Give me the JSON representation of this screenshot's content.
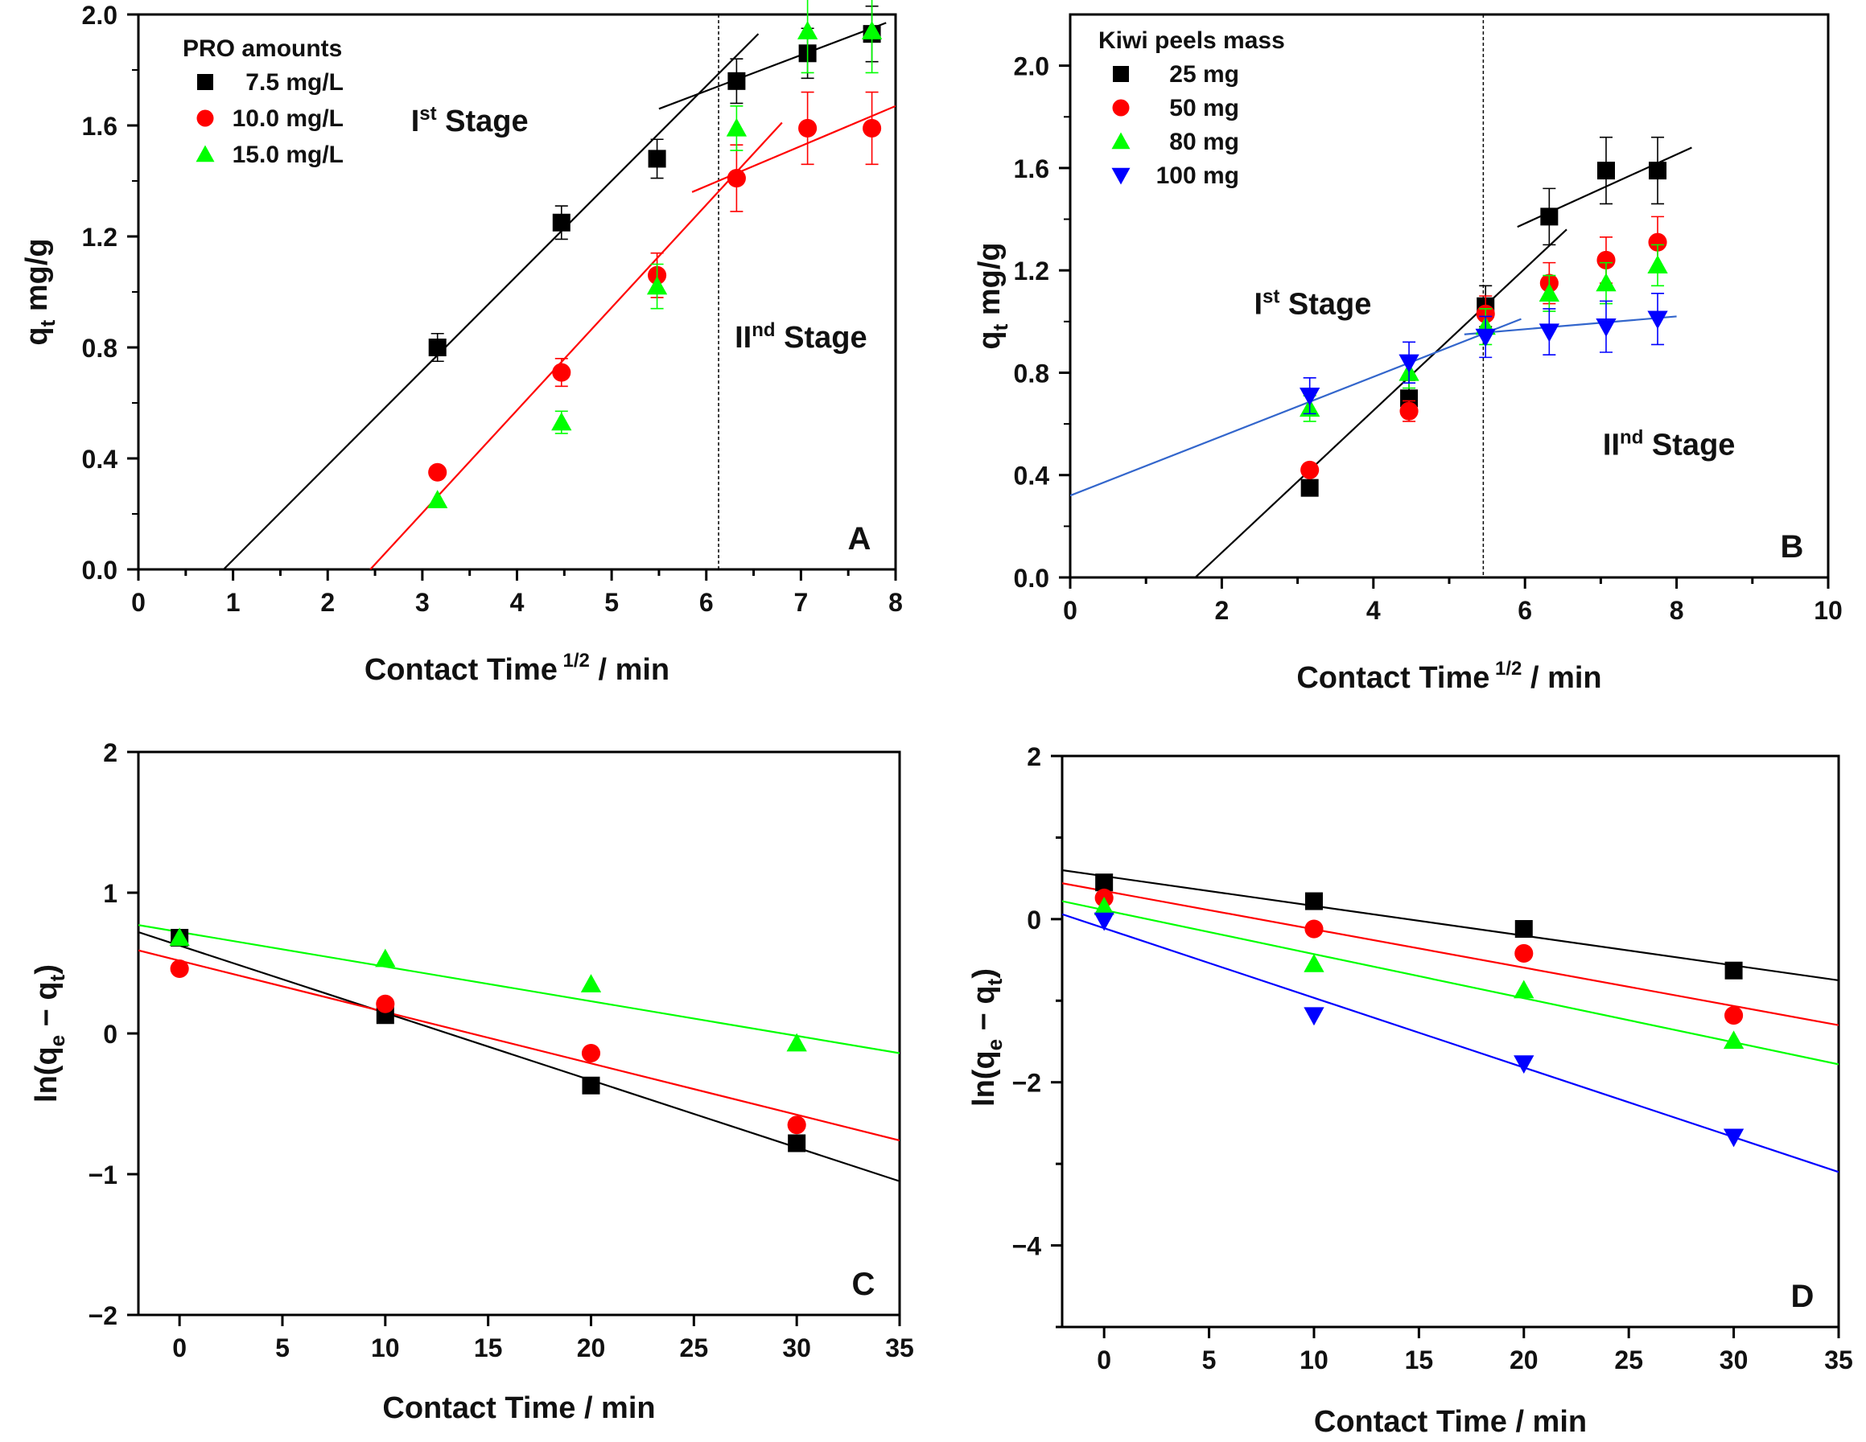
{
  "chart_data": [
    {
      "panel": "A",
      "type": "scatter",
      "xlabel": "Contact Time",
      "xlabel_sup": "1/2",
      "xlabel_unit": "/ min",
      "ylabel": "q",
      "ylabel_sub": "t",
      "ylabel_unit": "mg/g",
      "xlim": [
        0,
        8
      ],
      "ylim": [
        0,
        2.0
      ],
      "xticks": [
        0,
        1,
        2,
        3,
        4,
        5,
        6,
        7,
        8
      ],
      "yticks": [
        0.0,
        0.4,
        0.8,
        1.2,
        1.6,
        2.0
      ],
      "ytick_labels": [
        "0.0",
        "0.4",
        "0.8",
        "1.2",
        "1.6",
        "2.0"
      ],
      "minor_xticks": true,
      "legend_title": "PRO amounts",
      "legend_position": "top-left",
      "stage_divider_x": 6.13,
      "stage_labels": [
        {
          "main": "I",
          "sup": "st",
          "rest": " Stage",
          "x": 3.5,
          "y": 1.58
        },
        {
          "main": "II",
          "sup": "nd",
          "rest": " Stage",
          "x": 7.0,
          "y": 0.8
        }
      ],
      "series": [
        {
          "name": "7.5 mg/L",
          "marker": "square",
          "color": "#000000",
          "x": [
            3.16,
            4.47,
            5.48,
            6.32,
            7.07,
            7.75
          ],
          "y": [
            0.8,
            1.25,
            1.48,
            1.76,
            1.86,
            1.93
          ],
          "err": [
            0.05,
            0.06,
            0.07,
            0.08,
            0.09,
            0.1
          ]
        },
        {
          "name": "10.0 mg/L",
          "marker": "circle",
          "color": "#ff0000",
          "x": [
            3.16,
            4.47,
            5.48,
            6.32,
            7.07,
            7.75
          ],
          "y": [
            0.35,
            0.71,
            1.06,
            1.41,
            1.59,
            1.59
          ],
          "err": [
            0.0,
            0.05,
            0.08,
            0.12,
            0.13,
            0.13
          ]
        },
        {
          "name": "15.0 mg/L",
          "marker": "triangle-up",
          "color": "#00ff00",
          "x": [
            3.16,
            4.47,
            5.48,
            6.32,
            7.07,
            7.75
          ],
          "y": [
            0.25,
            0.53,
            1.02,
            1.59,
            1.94,
            1.94
          ],
          "err": [
            0.0,
            0.04,
            0.08,
            0.08,
            0.15,
            0.15
          ]
        }
      ],
      "fit_lines": [
        {
          "color": "#000000",
          "x": [
            0.9,
            6.55
          ],
          "y": [
            0.0,
            1.93
          ]
        },
        {
          "color": "#000000",
          "x": [
            5.5,
            7.9
          ],
          "y": [
            1.66,
            1.97
          ]
        },
        {
          "color": "#ff0000",
          "x": [
            2.45,
            6.8
          ],
          "y": [
            0.0,
            1.61
          ]
        },
        {
          "color": "#ff0000",
          "x": [
            5.85,
            8.0
          ],
          "y": [
            1.36,
            1.67
          ]
        }
      ],
      "panel_letter": "A"
    },
    {
      "panel": "B",
      "type": "scatter",
      "xlabel": "Contact Time",
      "xlabel_sup": "1/2",
      "xlabel_unit": "/ min",
      "ylabel": "q",
      "ylabel_sub": "t",
      "ylabel_unit": "mg/g",
      "xlim": [
        0,
        10
      ],
      "ylim": [
        0,
        2.2
      ],
      "xticks": [
        0,
        2,
        4,
        6,
        8,
        10
      ],
      "yticks": [
        0.0,
        0.4,
        0.8,
        1.2,
        1.6,
        2.0
      ],
      "ytick_labels": [
        "0.0",
        "0.4",
        "0.8",
        "1.2",
        "1.6",
        "2.0"
      ],
      "minor_xticks": true,
      "legend_title": "Kiwi peels mass",
      "legend_position": "top-left",
      "stage_divider_x": 5.45,
      "stage_labels": [
        {
          "main": "I",
          "sup": "st",
          "rest": " Stage",
          "x": 3.2,
          "y": 1.03
        },
        {
          "main": "II",
          "sup": "nd",
          "rest": " Stage",
          "x": 7.9,
          "y": 0.48
        }
      ],
      "series": [
        {
          "name": "25 mg",
          "marker": "square",
          "color": "#000000",
          "x": [
            3.16,
            4.47,
            5.48,
            6.32,
            7.07,
            7.75
          ],
          "y": [
            0.35,
            0.7,
            1.06,
            1.41,
            1.59,
            1.59
          ],
          "err": [
            0.0,
            0.07,
            0.08,
            0.11,
            0.13,
            0.13
          ]
        },
        {
          "name": "50 mg",
          "marker": "circle",
          "color": "#ff0000",
          "x": [
            3.16,
            4.47,
            5.48,
            6.32,
            7.07,
            7.75
          ],
          "y": [
            0.42,
            0.65,
            1.03,
            1.15,
            1.24,
            1.31
          ],
          "err": [
            0.0,
            0.04,
            0.07,
            0.08,
            0.09,
            0.1
          ]
        },
        {
          "name": "80 mg",
          "marker": "triangle-up",
          "color": "#00ff00",
          "x": [
            3.16,
            4.47,
            5.48,
            6.32,
            7.07,
            7.75
          ],
          "y": [
            0.66,
            0.8,
            0.98,
            1.11,
            1.15,
            1.22
          ],
          "err": [
            0.05,
            0.06,
            0.07,
            0.07,
            0.08,
            0.08
          ]
        },
        {
          "name": "100 mg",
          "marker": "triangle-down",
          "color": "#0000ff",
          "x": [
            3.16,
            4.47,
            5.48,
            6.32,
            7.07,
            7.75
          ],
          "y": [
            0.71,
            0.84,
            0.94,
            0.96,
            0.98,
            1.01
          ],
          "err": [
            0.07,
            0.08,
            0.08,
            0.09,
            0.1,
            0.1
          ]
        }
      ],
      "fit_lines": [
        {
          "color": "#000000",
          "x": [
            1.65,
            6.55
          ],
          "y": [
            0.0,
            1.36
          ]
        },
        {
          "color": "#000000",
          "x": [
            5.9,
            8.2
          ],
          "y": [
            1.37,
            1.68
          ]
        },
        {
          "color": "#3366cc",
          "x": [
            0.0,
            5.95
          ],
          "y": [
            0.32,
            1.01
          ]
        },
        {
          "color": "#3366cc",
          "x": [
            5.2,
            8.0
          ],
          "y": [
            0.95,
            1.02
          ]
        }
      ],
      "panel_letter": "B"
    },
    {
      "panel": "C",
      "type": "scatter",
      "xlabel": "Contact Time / min",
      "ylabel": "ln(q",
      "ylabel_sub1": "e",
      "ylabel_mid": " − q",
      "ylabel_sub2": "t",
      "ylabel_end": ")",
      "xlim": [
        -2,
        35
      ],
      "ylim": [
        -2,
        2
      ],
      "xticks": [
        0,
        5,
        10,
        15,
        20,
        25,
        30,
        35
      ],
      "yticks": [
        -2,
        -1,
        0,
        1,
        2
      ],
      "ytick_labels": [
        "−2",
        "−1",
        "0",
        "1",
        "2"
      ],
      "series": [
        {
          "name": "",
          "marker": "square",
          "color": "#000000",
          "x": [
            0,
            10,
            20,
            30
          ],
          "y": [
            0.68,
            0.13,
            -0.37,
            -0.78
          ]
        },
        {
          "name": "",
          "marker": "circle",
          "color": "#ff0000",
          "x": [
            0,
            10,
            20,
            30
          ],
          "y": [
            0.46,
            0.21,
            -0.14,
            -0.65
          ]
        },
        {
          "name": "",
          "marker": "triangle-up",
          "color": "#00ff00",
          "x": [
            0,
            10,
            20,
            30
          ],
          "y": [
            0.68,
            0.53,
            0.35,
            -0.07
          ]
        }
      ],
      "fit_lines": [
        {
          "color": "#000000",
          "x": [
            -2,
            35
          ],
          "y": [
            0.72,
            -1.05
          ]
        },
        {
          "color": "#ff0000",
          "x": [
            -2,
            35
          ],
          "y": [
            0.59,
            -0.76
          ]
        },
        {
          "color": "#00ff00",
          "x": [
            -2,
            35
          ],
          "y": [
            0.77,
            -0.14
          ]
        }
      ],
      "panel_letter": "C"
    },
    {
      "panel": "D",
      "type": "scatter",
      "xlabel": "Contact Time / min",
      "ylabel": "ln(q",
      "ylabel_sub1": "e",
      "ylabel_mid": " − q",
      "ylabel_sub2": "t",
      "ylabel_end": ")",
      "xlim": [
        -2,
        35
      ],
      "ylim": [
        -5,
        2
      ],
      "xticks": [
        0,
        5,
        10,
        15,
        20,
        25,
        30,
        35
      ],
      "yticks": [
        -4,
        -2,
        0,
        2
      ],
      "ytick_labels": [
        "−4",
        "−2",
        "0",
        "2"
      ],
      "minor_yticks": [
        -5,
        -3,
        -1,
        1
      ],
      "series": [
        {
          "name": "",
          "marker": "square",
          "color": "#000000",
          "x": [
            0,
            10,
            20,
            30
          ],
          "y": [
            0.45,
            0.22,
            -0.12,
            -0.63
          ]
        },
        {
          "name": "",
          "marker": "circle",
          "color": "#ff0000",
          "x": [
            0,
            10,
            20,
            30
          ],
          "y": [
            0.26,
            -0.12,
            -0.42,
            -1.18
          ]
        },
        {
          "name": "",
          "marker": "triangle-up",
          "color": "#00ff00",
          "x": [
            0,
            10,
            20,
            30
          ],
          "y": [
            0.15,
            -0.55,
            -0.87,
            -1.49
          ]
        },
        {
          "name": "",
          "marker": "triangle-down",
          "color": "#0000ff",
          "x": [
            0,
            10,
            20,
            30
          ],
          "y": [
            -0.02,
            -1.18,
            -1.77,
            -2.67
          ]
        }
      ],
      "fit_lines": [
        {
          "color": "#000000",
          "x": [
            -2,
            35
          ],
          "y": [
            0.6,
            -0.75
          ]
        },
        {
          "color": "#ff0000",
          "x": [
            -2,
            35
          ],
          "y": [
            0.44,
            -1.3
          ]
        },
        {
          "color": "#00ff00",
          "x": [
            -2,
            35
          ],
          "y": [
            0.22,
            -1.78
          ]
        },
        {
          "color": "#0000ff",
          "x": [
            -2,
            35
          ],
          "y": [
            0.06,
            -3.1
          ]
        }
      ],
      "panel_letter": "D"
    }
  ]
}
